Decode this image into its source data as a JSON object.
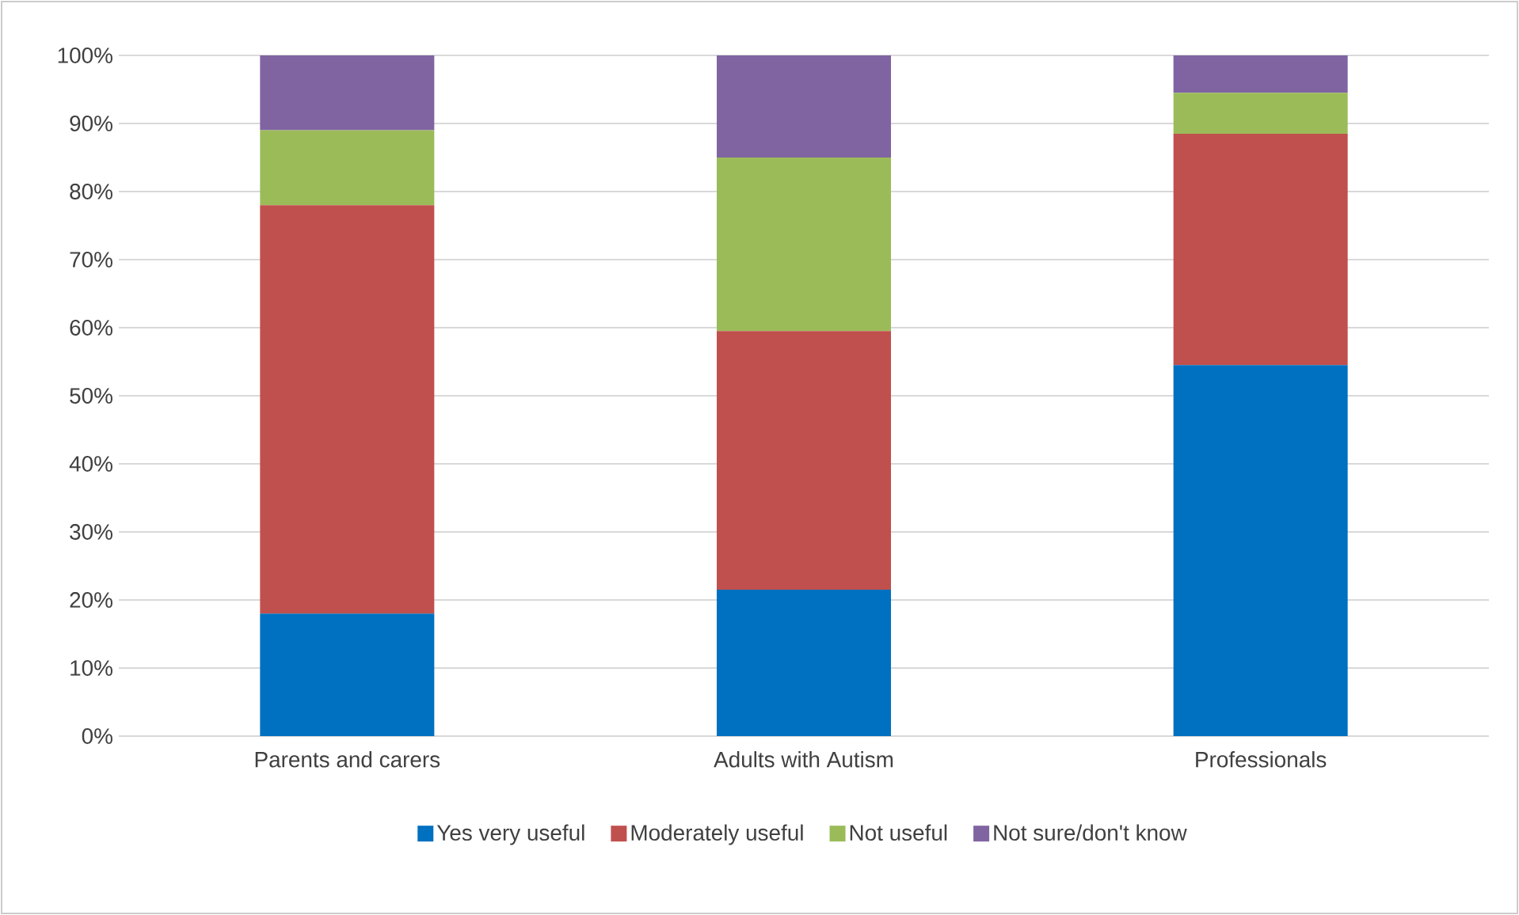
{
  "chart_data": {
    "type": "bar",
    "stacked": true,
    "categories": [
      "Parents and carers",
      "Adults with Autism",
      "Professionals"
    ],
    "series": [
      {
        "name": "Yes very useful",
        "color": "#0070c0",
        "values": [
          18,
          21.5,
          54.5
        ]
      },
      {
        "name": "Moderately useful",
        "color": "#c0504d",
        "values": [
          60,
          38,
          34
        ]
      },
      {
        "name": "Not useful",
        "color": "#9bbb59",
        "values": [
          11,
          25.5,
          6
        ]
      },
      {
        "name": "Not sure/don't know",
        "color": "#8064a2",
        "values": [
          11,
          15,
          5.5
        ]
      }
    ],
    "ylim": [
      0,
      100
    ],
    "yticks": [
      {
        "value": 0,
        "label": "0%"
      },
      {
        "value": 10,
        "label": "10%"
      },
      {
        "value": 20,
        "label": "20%"
      },
      {
        "value": 30,
        "label": "30%"
      },
      {
        "value": 40,
        "label": "40%"
      },
      {
        "value": 50,
        "label": "50%"
      },
      {
        "value": 60,
        "label": "60%"
      },
      {
        "value": 70,
        "label": "70%"
      },
      {
        "value": 80,
        "label": "80%"
      },
      {
        "value": 90,
        "label": "90%"
      },
      {
        "value": 100,
        "label": "100%"
      }
    ],
    "grid": "y",
    "legend": "bottom"
  }
}
